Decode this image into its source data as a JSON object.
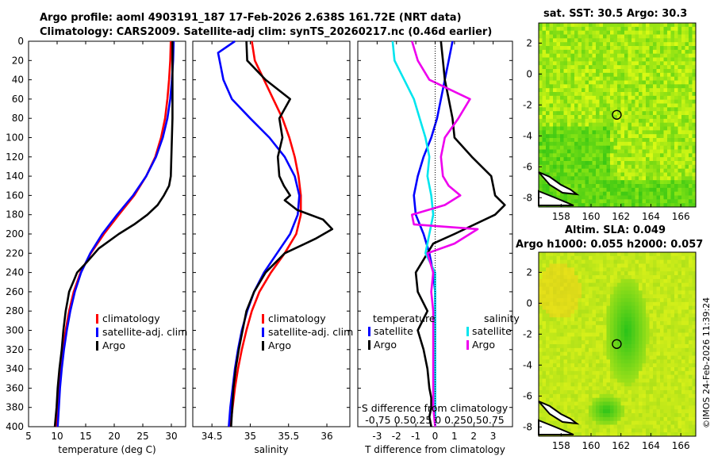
{
  "titles": {
    "line1": "Argo profile: aoml 4903191_187 17-Feb-2026 2.638S 161.72E (NRT data)",
    "line2": "Climatology: CARS2009. Satellite-adj clim: synTS_20260217.nc (0.46d earlier)",
    "sst_title": "sat. SST: 30.5 Argo: 30.3",
    "slа_title1": "Altim. SLA: 0.049",
    "sla_title2": "Argo h1000: 0.055 h2000: 0.057",
    "side_label": "©IMOS 24-Feb-2026 11:39:24"
  },
  "chart_data": [
    {
      "type": "line",
      "name": "temperature-profile",
      "xlabel": "temperature (deg C)",
      "ylabel": "",
      "xlim": [
        5,
        32.5
      ],
      "ylim": [
        0,
        400
      ],
      "xticks": [
        5,
        10,
        15,
        20,
        25,
        30
      ],
      "yticks": [
        0,
        20,
        40,
        60,
        80,
        100,
        120,
        140,
        160,
        180,
        200,
        220,
        240,
        260,
        280,
        300,
        320,
        340,
        360,
        380,
        400
      ],
      "legend": [
        "climatology",
        "satellite-adj. clim",
        "Argo"
      ],
      "series": [
        {
          "name": "climatology",
          "color": "#ff0000",
          "x": [
            29.9,
            29.8,
            29.6,
            29.3,
            28.9,
            28.2,
            27.2,
            25.6,
            23.5,
            20.8,
            18.2,
            15.9,
            14.1,
            12.9,
            12.1,
            11.5,
            11.0,
            10.6,
            10.3,
            10.0,
            9.8
          ],
          "y": [
            0,
            20,
            40,
            60,
            80,
            100,
            120,
            140,
            160,
            180,
            200,
            220,
            240,
            260,
            280,
            300,
            320,
            340,
            360,
            380,
            400
          ]
        },
        {
          "name": "satellite-adj. clim",
          "color": "#0000ff",
          "x": [
            30.4,
            30.3,
            30.1,
            29.8,
            29.3,
            28.5,
            27.3,
            25.6,
            23.3,
            20.5,
            17.9,
            15.8,
            14.2,
            13.1,
            12.3,
            11.7,
            11.2,
            10.8,
            10.5,
            10.3,
            10.1
          ],
          "y": [
            0,
            20,
            40,
            60,
            80,
            100,
            120,
            140,
            160,
            180,
            200,
            220,
            240,
            260,
            280,
            300,
            320,
            340,
            360,
            380,
            400
          ]
        },
        {
          "name": "Argo",
          "color": "#000000",
          "x": [
            30.2,
            30.2,
            30.2,
            30.2,
            30.1,
            30.0,
            29.9,
            29.6,
            28.7,
            27.6,
            25.8,
            23.5,
            20.8,
            17.3,
            15.1,
            13.5,
            12.8,
            12.1,
            11.8,
            11.5,
            11.1,
            10.8,
            10.4,
            10.1,
            9.9,
            9.6
          ],
          "y": [
            0,
            40,
            60,
            80,
            100,
            120,
            140,
            150,
            160,
            170,
            180,
            190,
            200,
            215,
            230,
            240,
            250,
            260,
            270,
            280,
            300,
            320,
            340,
            360,
            380,
            400
          ]
        }
      ]
    },
    {
      "type": "line",
      "name": "salinity-profile",
      "xlabel": "salinity",
      "xlim": [
        34.25,
        36.3
      ],
      "ylim": [
        0,
        400
      ],
      "xticks": [
        34.5,
        35,
        35.5,
        36
      ],
      "legend": [
        "climatology",
        "satellite-adj. clim",
        "Argo"
      ],
      "series": [
        {
          "name": "climatology",
          "color": "#ff0000",
          "x": [
            35.02,
            35.06,
            35.18,
            35.3,
            35.42,
            35.51,
            35.58,
            35.63,
            35.66,
            35.66,
            35.6,
            35.45,
            35.27,
            35.12,
            35.02,
            34.95,
            34.89,
            34.84,
            34.8,
            34.77,
            34.74
          ],
          "y": [
            0,
            20,
            40,
            60,
            80,
            100,
            120,
            140,
            160,
            180,
            200,
            220,
            240,
            260,
            280,
            300,
            320,
            340,
            360,
            380,
            400
          ]
        },
        {
          "name": "satellite-adj. clim",
          "color": "#0000ff",
          "x": [
            34.8,
            34.58,
            34.65,
            34.76,
            35.0,
            35.25,
            35.45,
            35.58,
            35.64,
            35.62,
            35.52,
            35.35,
            35.18,
            35.05,
            34.96,
            34.89,
            34.84,
            34.8,
            34.77,
            34.74,
            34.72
          ],
          "y": [
            0,
            12,
            40,
            60,
            80,
            100,
            120,
            140,
            160,
            180,
            200,
            220,
            240,
            260,
            280,
            300,
            320,
            340,
            360,
            380,
            400
          ]
        },
        {
          "name": "Argo",
          "color": "#000000",
          "x": [
            34.95,
            34.96,
            35.2,
            35.52,
            35.38,
            35.42,
            35.36,
            35.38,
            35.44,
            35.52,
            35.45,
            35.61,
            35.95,
            36.07,
            35.85,
            35.45,
            35.2,
            35.05,
            34.95,
            34.9,
            34.85,
            34.81,
            34.78,
            34.75
          ],
          "y": [
            0,
            20,
            40,
            60,
            80,
            100,
            120,
            140,
            150,
            160,
            165,
            175,
            185,
            195,
            205,
            220,
            240,
            260,
            280,
            300,
            320,
            340,
            360,
            400
          ]
        }
      ]
    },
    {
      "type": "line",
      "name": "difference-profile",
      "xlabel": "T difference from climatology",
      "xlim": [
        -4,
        4
      ],
      "ylim": [
        0,
        400
      ],
      "xticks": [
        -3,
        -2,
        -1,
        0,
        1,
        2,
        3
      ],
      "s_axis_label": "S difference from climatology",
      "s_ticks": "-0.75 0.50.25  0  0.250.50.75",
      "legend_left_title": "temperature",
      "legend_right_title": "salinity",
      "legend_left": [
        "satellite",
        "Argo"
      ],
      "legend_right": [
        "satellite",
        "Argo"
      ],
      "series": [
        {
          "name": "temperature satellite",
          "color": "#0000ff",
          "x": [
            0.9,
            0.7,
            0.5,
            0.3,
            0.1,
            -0.2,
            -0.6,
            -0.9,
            -1.1,
            -1.0,
            -0.6,
            -0.3,
            -0.1,
            0.0,
            0.0,
            0.0,
            0.0,
            0.0,
            0.0,
            0.0,
            0.0
          ],
          "y": [
            0,
            20,
            40,
            60,
            80,
            100,
            120,
            140,
            160,
            180,
            200,
            220,
            240,
            260,
            280,
            300,
            320,
            340,
            360,
            380,
            400
          ]
        },
        {
          "name": "temperature Argo",
          "color": "#000000",
          "x": [
            0.3,
            0.4,
            0.5,
            0.7,
            0.9,
            1.0,
            1.9,
            2.9,
            3.1,
            3.6,
            3.1,
            1.0,
            -0.1,
            -0.4,
            -1.0,
            -0.9,
            -0.4,
            -0.9,
            -0.6,
            -0.4,
            -0.3,
            -0.2,
            -0.2,
            -0.3,
            -0.2
          ],
          "y": [
            0,
            20,
            40,
            60,
            80,
            100,
            120,
            140,
            160,
            170,
            180,
            200,
            210,
            220,
            240,
            260,
            280,
            300,
            320,
            340,
            360,
            370,
            380,
            390,
            400
          ]
        },
        {
          "name": "salinity satellite",
          "color": "#00e5ee",
          "x": [
            -2.2,
            -2.1,
            -1.6,
            -1.1,
            -0.8,
            -0.5,
            -0.3,
            -0.4,
            -0.2,
            -0.1,
            -0.3,
            -0.5,
            0.0,
            0.0,
            0.0,
            0.0,
            0.0,
            0.0,
            0.0,
            0.0,
            0.0
          ],
          "y": [
            0,
            20,
            40,
            60,
            80,
            100,
            120,
            140,
            160,
            180,
            200,
            220,
            240,
            260,
            280,
            300,
            320,
            340,
            360,
            380,
            400
          ]
        },
        {
          "name": "salinity Argo",
          "color": "#ee00ee",
          "x": [
            -1.2,
            -0.9,
            -0.3,
            1.8,
            1.2,
            0.5,
            0.3,
            0.4,
            0.7,
            1.3,
            0.5,
            -1.2,
            -1.1,
            2.2,
            1.0,
            -0.4,
            -0.1,
            -0.2,
            -0.1,
            -0.1,
            -0.1,
            -0.1,
            0.0
          ],
          "y": [
            0,
            20,
            40,
            60,
            80,
            100,
            120,
            140,
            150,
            160,
            170,
            180,
            190,
            195,
            210,
            220,
            240,
            260,
            280,
            300,
            340,
            380,
            400
          ]
        }
      ]
    },
    {
      "type": "heatmap",
      "name": "sst-map",
      "title": "sat. SST: 30.5 Argo: 30.3",
      "xlim": [
        156.5,
        167
      ],
      "ylim": [
        -8.6,
        3.3
      ],
      "xticks": [
        158,
        160,
        162,
        164,
        166
      ],
      "yticks": [
        2,
        0,
        -2,
        -4,
        -6,
        -8
      ],
      "marker": {
        "lon": 161.72,
        "lat": -2.638
      }
    },
    {
      "type": "heatmap",
      "name": "sla-map",
      "title": "Argo h1000: 0.055 h2000: 0.057",
      "xlim": [
        156.5,
        167
      ],
      "ylim": [
        -8.6,
        3.3
      ],
      "xticks": [
        158,
        160,
        162,
        164,
        166
      ],
      "yticks": [
        2,
        0,
        -2,
        -4,
        -6,
        -8
      ],
      "marker": {
        "lon": 161.72,
        "lat": -2.638
      }
    }
  ]
}
